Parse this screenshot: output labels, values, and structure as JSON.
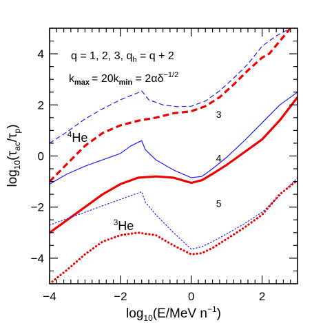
{
  "chart_data": {
    "type": "line",
    "xlabel": {
      "prefix": "log",
      "sub": "10",
      "main": "(E/MeV n",
      "sup": "−1",
      "close": ")"
    },
    "ylabel": {
      "prefix": "log",
      "sub": "10",
      "open": "(τ",
      "sub1": "ac",
      "mid": "/τ",
      "sub2": "p",
      "close": ")"
    },
    "xlim": [
      -4,
      3
    ],
    "ylim": [
      -5,
      5
    ],
    "xticks": [
      -4,
      -2,
      0,
      2
    ],
    "xtick_labels": [
      "−4",
      "−2",
      "0",
      "2"
    ],
    "yticks": [
      -4,
      -2,
      0,
      2,
      4
    ],
    "ytick_labels": [
      "−4",
      "−2",
      "0",
      "2",
      "4"
    ],
    "annotations": {
      "line1": "q = 1, 2, 3, q",
      "line1_sub": "h",
      "line1_tail": " = q + 2",
      "line2a": "k",
      "line2a_sub": "max",
      "line2b": "= 20k",
      "line2b_sub": "min",
      "line2c": " = 2αδ",
      "line2c_sup": "−1/2"
    },
    "curve_labels": [
      {
        "text": "3",
        "x": 0.7,
        "y": 1.5
      },
      {
        "text": "4",
        "x": 0.7,
        "y": -0.22
      },
      {
        "text": "5",
        "x": 0.7,
        "y": -2.0
      }
    ],
    "species_labels": [
      {
        "sup": "4",
        "text": "He",
        "color": "#1a1aff",
        "x": -3.5,
        "y": 0.55
      },
      {
        "sup": "3",
        "text": "He",
        "color": "#ee0000",
        "x": -2.2,
        "y": -2.9
      }
    ],
    "colors": {
      "he4": "#1a1aff",
      "he3": "#ee0000"
    },
    "series": [
      {
        "species": "4He",
        "q": 3,
        "style": "dashed",
        "weight": "thin",
        "points": [
          [
            -4,
            0.5
          ],
          [
            -3.5,
            0.95
          ],
          [
            -3,
            1.45
          ],
          [
            -2.5,
            1.85
          ],
          [
            -2,
            2.2
          ],
          [
            -1.5,
            2.48
          ],
          [
            -1.4,
            2.55
          ],
          [
            -1.2,
            2.2
          ],
          [
            -0.8,
            2.0
          ],
          [
            -0.4,
            1.93
          ],
          [
            0,
            1.95
          ],
          [
            0.4,
            2.15
          ],
          [
            0.8,
            2.55
          ],
          [
            1.2,
            3.05
          ],
          [
            1.6,
            3.6
          ],
          [
            2,
            4.3
          ],
          [
            2.4,
            4.7
          ],
          [
            2.8,
            5.0
          ]
        ]
      },
      {
        "species": "3He",
        "q": 3,
        "style": "dashed",
        "weight": "thick",
        "points": [
          [
            -4,
            -1.0
          ],
          [
            -3.5,
            -0.3
          ],
          [
            -3,
            0.4
          ],
          [
            -2.5,
            0.9
          ],
          [
            -2,
            1.2
          ],
          [
            -1.5,
            1.38
          ],
          [
            -1,
            1.5
          ],
          [
            -0.5,
            1.67
          ],
          [
            0,
            1.75
          ],
          [
            0.4,
            1.95
          ],
          [
            0.8,
            2.3
          ],
          [
            1.2,
            2.8
          ],
          [
            1.6,
            3.35
          ],
          [
            2,
            3.85
          ],
          [
            2.2,
            4.0
          ],
          [
            2.5,
            4.5
          ],
          [
            2.8,
            5.0
          ]
        ]
      },
      {
        "species": "4He",
        "q": 4,
        "style": "solid",
        "weight": "thin",
        "points": [
          [
            -4,
            -1.1
          ],
          [
            -3.5,
            -0.7
          ],
          [
            -3,
            -0.4
          ],
          [
            -2.5,
            -0.15
          ],
          [
            -2,
            0.1
          ],
          [
            -1.7,
            0.4
          ],
          [
            -1.4,
            0.6
          ],
          [
            -1.3,
            0.25
          ],
          [
            -1,
            -0.15
          ],
          [
            -0.5,
            -0.55
          ],
          [
            0,
            -0.85
          ],
          [
            0.3,
            -0.8
          ],
          [
            0.6,
            -0.5
          ],
          [
            1,
            -0.05
          ],
          [
            1.5,
            0.6
          ],
          [
            2,
            1.3
          ],
          [
            2.5,
            2.0
          ],
          [
            3,
            2.5
          ]
        ]
      },
      {
        "species": "3He",
        "q": 4,
        "style": "solid",
        "weight": "thick",
        "points": [
          [
            -4,
            -3.0
          ],
          [
            -3.5,
            -2.5
          ],
          [
            -3,
            -2.0
          ],
          [
            -2.5,
            -1.5
          ],
          [
            -2,
            -1.1
          ],
          [
            -1.5,
            -0.85
          ],
          [
            -1,
            -0.8
          ],
          [
            -0.5,
            -0.85
          ],
          [
            0,
            -1.05
          ],
          [
            0.3,
            -0.95
          ],
          [
            0.6,
            -0.7
          ],
          [
            1,
            -0.35
          ],
          [
            1.5,
            0.15
          ],
          [
            2,
            0.65
          ],
          [
            2.5,
            1.4
          ],
          [
            3,
            2.3
          ]
        ]
      },
      {
        "species": "4He",
        "q": 5,
        "style": "dotted",
        "weight": "thin",
        "points": [
          [
            -4,
            -2.7
          ],
          [
            -3.5,
            -2.45
          ],
          [
            -3,
            -2.2
          ],
          [
            -2.5,
            -1.95
          ],
          [
            -2,
            -1.7
          ],
          [
            -1.6,
            -1.5
          ],
          [
            -1.4,
            -1.4
          ],
          [
            -1.3,
            -1.8
          ],
          [
            -1,
            -2.3
          ],
          [
            -0.5,
            -3.0
          ],
          [
            0,
            -3.65
          ],
          [
            0.3,
            -3.55
          ],
          [
            0.6,
            -3.35
          ],
          [
            1,
            -3.05
          ],
          [
            1.5,
            -2.65
          ],
          [
            2,
            -2.2
          ],
          [
            2.5,
            -1.55
          ],
          [
            3,
            -0.85
          ]
        ]
      },
      {
        "species": "3He",
        "q": 5,
        "style": "dotted",
        "weight": "thick",
        "points": [
          [
            -4,
            -5.0
          ],
          [
            -3.5,
            -4.45
          ],
          [
            -3,
            -3.85
          ],
          [
            -2.5,
            -3.35
          ],
          [
            -2,
            -3.1
          ],
          [
            -1.5,
            -3.0
          ],
          [
            -1,
            -3.1
          ],
          [
            -0.5,
            -3.5
          ],
          [
            0,
            -3.85
          ],
          [
            0.3,
            -3.8
          ],
          [
            0.6,
            -3.6
          ],
          [
            1,
            -3.25
          ],
          [
            1.5,
            -2.8
          ],
          [
            2,
            -2.3
          ],
          [
            2.5,
            -1.5
          ],
          [
            3,
            -0.95
          ]
        ]
      }
    ]
  }
}
